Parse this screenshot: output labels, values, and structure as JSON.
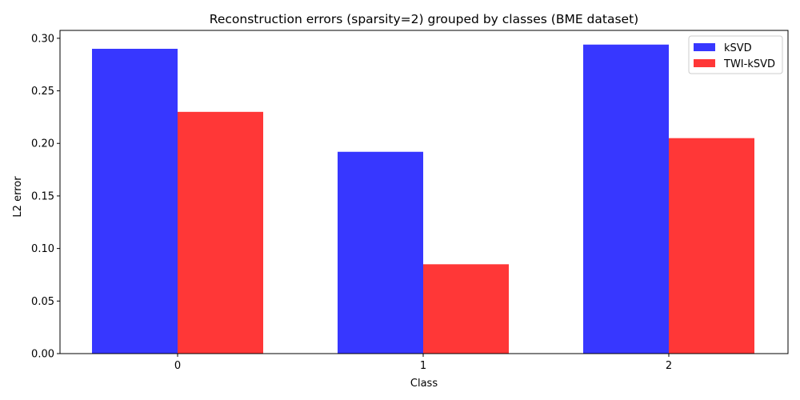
{
  "chart_data": {
    "type": "bar",
    "title": "Reconstruction errors (sparsity=2) grouped by classes (BME dataset)",
    "xlabel": "Class",
    "ylabel": "L2 error",
    "categories": [
      "0",
      "1",
      "2"
    ],
    "series": [
      {
        "name": "kSVD",
        "color": "#3333ff",
        "values": [
          0.29,
          0.192,
          0.294
        ]
      },
      {
        "name": "TWI-kSVD",
        "color": "#ff3333",
        "values": [
          0.23,
          0.085,
          0.205
        ]
      }
    ],
    "ylim": [
      0,
      0.3075
    ],
    "yticks": [
      "0.00",
      "0.05",
      "0.10",
      "0.15",
      "0.20",
      "0.25",
      "0.30"
    ],
    "grid": false,
    "legend_position": "top-right"
  }
}
